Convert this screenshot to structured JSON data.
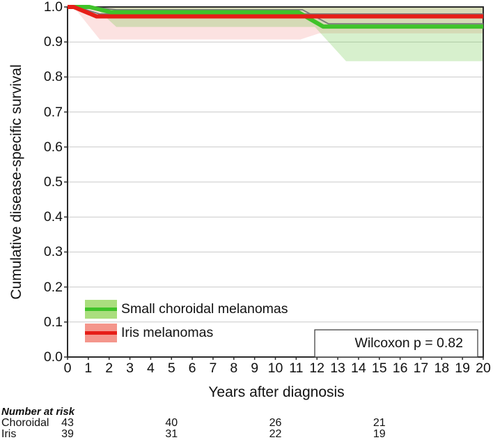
{
  "chart_data": {
    "type": "line",
    "subtype": "kaplan-meier-survival",
    "title": "",
    "xlabel": "Years after diagnosis",
    "ylabel": "Cumulative disease-specific survival",
    "xlim": [
      0,
      20
    ],
    "ylim": [
      0.0,
      1.0
    ],
    "xticks": [
      0,
      1,
      2,
      3,
      4,
      5,
      6,
      7,
      8,
      9,
      10,
      11,
      12,
      13,
      14,
      15,
      16,
      17,
      18,
      19,
      20
    ],
    "yticks": [
      0.0,
      0.1,
      0.2,
      0.3,
      0.4,
      0.5,
      0.6,
      0.7,
      0.8,
      0.9,
      1.0
    ],
    "grid": "horizontal-only",
    "gridline_color": "#c9c9c9",
    "border_color": "#2b2b2b",
    "ci_line_color": "#7a7a7a",
    "annotation": {
      "text": "Wilcoxon p = 0.82"
    },
    "legend_position": "bottom-left",
    "series": [
      {
        "name": "Small choroidal melanomas",
        "color": "#3fc32a",
        "band_fill": "rgba(96,196,56,0.25)",
        "legend_swatch": "#aade7e",
        "line": [
          [
            0,
            1.0
          ],
          [
            1.05,
            1.0
          ],
          [
            2.1,
            0.985
          ],
          [
            11.1,
            0.985
          ],
          [
            12.3,
            0.944
          ],
          [
            20,
            0.944
          ]
        ],
        "ci_upper": [
          [
            0,
            1.0
          ],
          [
            1.2,
            1.0
          ],
          [
            2.35,
            0.992
          ],
          [
            11.3,
            0.992
          ],
          [
            12.55,
            0.952
          ],
          [
            20,
            0.952
          ]
        ],
        "ci_lower": [
          [
            0,
            1.0
          ],
          [
            1.3,
            1.0
          ],
          [
            2.35,
            0.943
          ],
          [
            11.9,
            0.943
          ],
          [
            13.4,
            0.845
          ],
          [
            20,
            0.845
          ]
        ]
      },
      {
        "name": "Iris melanomas",
        "color": "#e61e17",
        "band_fill": "rgba(235,50,40,0.14)",
        "legend_swatch": "#f4968c",
        "line": [
          [
            0,
            1.0
          ],
          [
            0.3,
            1.0
          ],
          [
            1.4,
            0.973
          ],
          [
            20,
            0.973
          ]
        ],
        "ci_upper": [
          [
            0,
            1.0
          ],
          [
            0.45,
            1.0
          ],
          [
            1.55,
            0.98
          ],
          [
            20,
            0.98
          ]
        ],
        "ci_lower": [
          [
            0,
            1.0
          ],
          [
            0.3,
            1.0
          ],
          [
            1.55,
            0.907
          ],
          [
            11.2,
            0.907
          ],
          [
            12.1,
            0.9245
          ],
          [
            20,
            0.9245
          ]
        ]
      }
    ]
  },
  "risk_table": {
    "title": "Number at risk",
    "column_years": [
      0,
      5,
      10,
      15
    ],
    "rows": [
      {
        "label": "Choroidal",
        "values": [
          43,
          40,
          26,
          21
        ]
      },
      {
        "label": "Iris",
        "values": [
          39,
          31,
          22,
          19
        ]
      }
    ]
  }
}
